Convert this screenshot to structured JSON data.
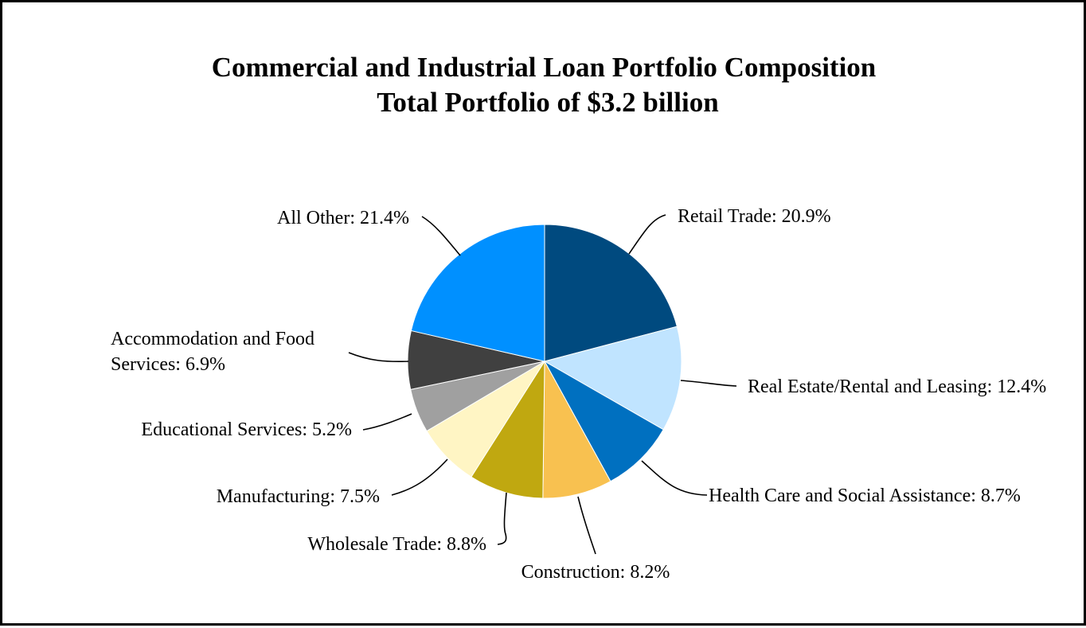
{
  "chart_data": {
    "type": "pie",
    "title": "Commercial and Industrial Loan Portfolio Composition",
    "subtitle": "Total Portfolio of $3.2 billion",
    "slices": [
      {
        "name": "Retail Trade",
        "label": "Retail Trade: 20.9%",
        "value": 20.9,
        "color": "#004a7f"
      },
      {
        "name": "Real Estate/Rental and Leasing",
        "label": "Real Estate/Rental and Leasing: 12.4%",
        "value": 12.4,
        "color": "#c0e4ff"
      },
      {
        "name": "Health Care and Social Assistance",
        "label": "Health Care and Social Assistance: 8.7%",
        "value": 8.7,
        "color": "#0070c0"
      },
      {
        "name": "Construction",
        "label": "Construction: 8.2%",
        "value": 8.2,
        "color": "#f8c150"
      },
      {
        "name": "Wholesale Trade",
        "label": "Wholesale Trade: 8.8%",
        "value": 8.8,
        "color": "#c0a810"
      },
      {
        "name": "Manufacturing",
        "label": "Manufacturing: 7.5%",
        "value": 7.5,
        "color": "#fff5c4"
      },
      {
        "name": "Educational Services",
        "label": "Educational Services: 5.2%",
        "value": 5.2,
        "color": "#a0a0a0"
      },
      {
        "name": "Accommodation and Food Services",
        "label_lines": [
          "Accommodation and Food",
          "Services: 6.9%"
        ],
        "value": 6.9,
        "color": "#404040"
      },
      {
        "name": "All Other",
        "label": "All Other: 21.4%",
        "value": 21.4,
        "color": "#0090ff"
      }
    ]
  }
}
